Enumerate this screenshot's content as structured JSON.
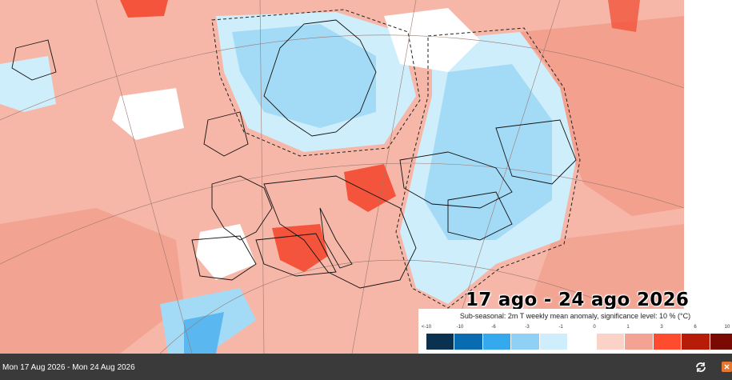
{
  "map": {
    "legend": {
      "title": "Sub-seasonal: 2m T weekly mean anomaly, significance level: 10 % (°C)",
      "ticks": [
        "<-10",
        "-10",
        "-6",
        "-3",
        "-1",
        "0",
        "1",
        "3",
        "6",
        "10"
      ],
      "colors": [
        "#0b3150",
        "#0a6cb0",
        "#35a9ee",
        "#8fd0f5",
        "#cfeefb",
        "#ffffff",
        "#fbd2c8",
        "#f4a293",
        "#ff4b2e",
        "#b71c08",
        "#7a0a00"
      ]
    },
    "period_overlay": "17 ago - 24 ago 2026",
    "colors": {
      "warm_light": "#f6b7a8",
      "warm_mid": "#f29a87",
      "warm_strong": "#f3543b",
      "cool_light": "#cfeefb",
      "cool_mid": "#a3dbf6",
      "cool_strong": "#5ab7ef",
      "neutral": "#ffffff"
    }
  },
  "footer": {
    "date_range": "Mon 17 Aug 2026 - Mon 24 Aug 2026",
    "refresh_icon": "refresh-icon",
    "corner_icon": "close-icon"
  }
}
